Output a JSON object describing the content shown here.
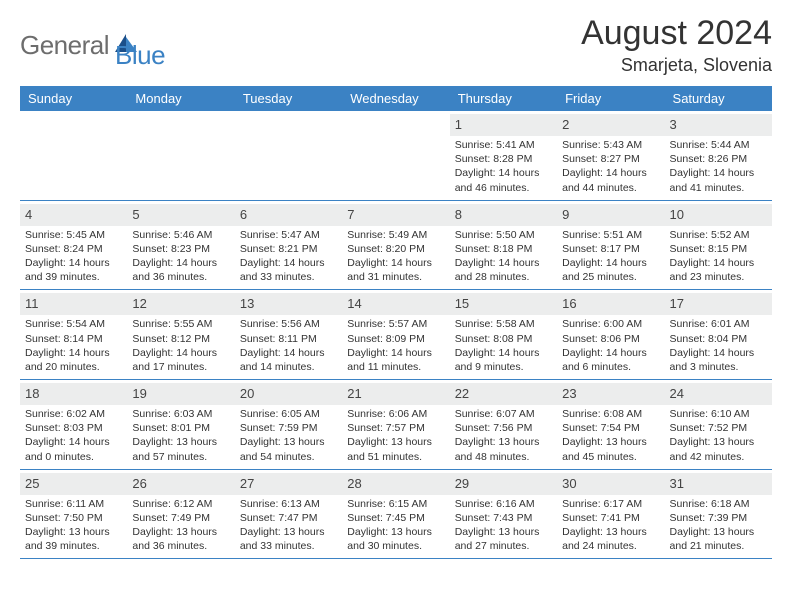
{
  "brand": {
    "part1": "General",
    "part2": "Blue"
  },
  "title": {
    "month": "August 2024",
    "location": "Smarjeta, Slovenia"
  },
  "colors": {
    "header_bg": "#3b82c4",
    "daynum_bg": "#eceded",
    "rule": "#3b82c4"
  },
  "day_names": [
    "Sunday",
    "Monday",
    "Tuesday",
    "Wednesday",
    "Thursday",
    "Friday",
    "Saturday"
  ],
  "weeks": [
    [
      null,
      null,
      null,
      null,
      {
        "n": "1",
        "sr": "5:41 AM",
        "ss": "8:28 PM",
        "dl": "14 hours and 46 minutes."
      },
      {
        "n": "2",
        "sr": "5:43 AM",
        "ss": "8:27 PM",
        "dl": "14 hours and 44 minutes."
      },
      {
        "n": "3",
        "sr": "5:44 AM",
        "ss": "8:26 PM",
        "dl": "14 hours and 41 minutes."
      }
    ],
    [
      {
        "n": "4",
        "sr": "5:45 AM",
        "ss": "8:24 PM",
        "dl": "14 hours and 39 minutes."
      },
      {
        "n": "5",
        "sr": "5:46 AM",
        "ss": "8:23 PM",
        "dl": "14 hours and 36 minutes."
      },
      {
        "n": "6",
        "sr": "5:47 AM",
        "ss": "8:21 PM",
        "dl": "14 hours and 33 minutes."
      },
      {
        "n": "7",
        "sr": "5:49 AM",
        "ss": "8:20 PM",
        "dl": "14 hours and 31 minutes."
      },
      {
        "n": "8",
        "sr": "5:50 AM",
        "ss": "8:18 PM",
        "dl": "14 hours and 28 minutes."
      },
      {
        "n": "9",
        "sr": "5:51 AM",
        "ss": "8:17 PM",
        "dl": "14 hours and 25 minutes."
      },
      {
        "n": "10",
        "sr": "5:52 AM",
        "ss": "8:15 PM",
        "dl": "14 hours and 23 minutes."
      }
    ],
    [
      {
        "n": "11",
        "sr": "5:54 AM",
        "ss": "8:14 PM",
        "dl": "14 hours and 20 minutes."
      },
      {
        "n": "12",
        "sr": "5:55 AM",
        "ss": "8:12 PM",
        "dl": "14 hours and 17 minutes."
      },
      {
        "n": "13",
        "sr": "5:56 AM",
        "ss": "8:11 PM",
        "dl": "14 hours and 14 minutes."
      },
      {
        "n": "14",
        "sr": "5:57 AM",
        "ss": "8:09 PM",
        "dl": "14 hours and 11 minutes."
      },
      {
        "n": "15",
        "sr": "5:58 AM",
        "ss": "8:08 PM",
        "dl": "14 hours and 9 minutes."
      },
      {
        "n": "16",
        "sr": "6:00 AM",
        "ss": "8:06 PM",
        "dl": "14 hours and 6 minutes."
      },
      {
        "n": "17",
        "sr": "6:01 AM",
        "ss": "8:04 PM",
        "dl": "14 hours and 3 minutes."
      }
    ],
    [
      {
        "n": "18",
        "sr": "6:02 AM",
        "ss": "8:03 PM",
        "dl": "14 hours and 0 minutes."
      },
      {
        "n": "19",
        "sr": "6:03 AM",
        "ss": "8:01 PM",
        "dl": "13 hours and 57 minutes."
      },
      {
        "n": "20",
        "sr": "6:05 AM",
        "ss": "7:59 PM",
        "dl": "13 hours and 54 minutes."
      },
      {
        "n": "21",
        "sr": "6:06 AM",
        "ss": "7:57 PM",
        "dl": "13 hours and 51 minutes."
      },
      {
        "n": "22",
        "sr": "6:07 AM",
        "ss": "7:56 PM",
        "dl": "13 hours and 48 minutes."
      },
      {
        "n": "23",
        "sr": "6:08 AM",
        "ss": "7:54 PM",
        "dl": "13 hours and 45 minutes."
      },
      {
        "n": "24",
        "sr": "6:10 AM",
        "ss": "7:52 PM",
        "dl": "13 hours and 42 minutes."
      }
    ],
    [
      {
        "n": "25",
        "sr": "6:11 AM",
        "ss": "7:50 PM",
        "dl": "13 hours and 39 minutes."
      },
      {
        "n": "26",
        "sr": "6:12 AM",
        "ss": "7:49 PM",
        "dl": "13 hours and 36 minutes."
      },
      {
        "n": "27",
        "sr": "6:13 AM",
        "ss": "7:47 PM",
        "dl": "13 hours and 33 minutes."
      },
      {
        "n": "28",
        "sr": "6:15 AM",
        "ss": "7:45 PM",
        "dl": "13 hours and 30 minutes."
      },
      {
        "n": "29",
        "sr": "6:16 AM",
        "ss": "7:43 PM",
        "dl": "13 hours and 27 minutes."
      },
      {
        "n": "30",
        "sr": "6:17 AM",
        "ss": "7:41 PM",
        "dl": "13 hours and 24 minutes."
      },
      {
        "n": "31",
        "sr": "6:18 AM",
        "ss": "7:39 PM",
        "dl": "13 hours and 21 minutes."
      }
    ]
  ],
  "labels": {
    "sunrise": "Sunrise:",
    "sunset": "Sunset:",
    "daylight": "Daylight:"
  }
}
